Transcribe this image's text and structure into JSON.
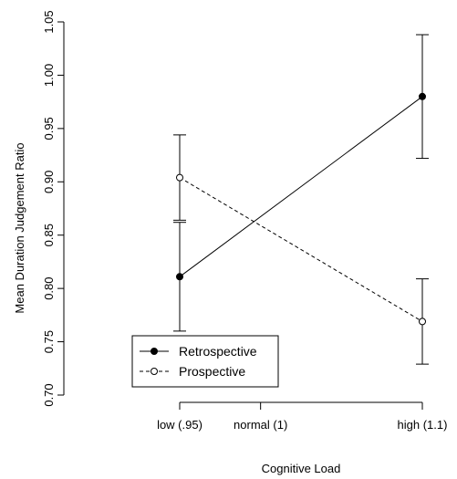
{
  "chart_data": {
    "type": "line",
    "title": "",
    "xlabel": "Cognitive Load",
    "ylabel": "Mean Duration Judgement Ratio",
    "x_ticks": [
      {
        "value": 0.95,
        "label": "low (.95)"
      },
      {
        "value": 1.0,
        "label": "normal (1)"
      },
      {
        "value": 1.1,
        "label": "high (1.1)"
      }
    ],
    "xlim": [
      0.95,
      1.1
    ],
    "ylim": [
      0.7,
      1.05
    ],
    "y_ticks": [
      "0.70",
      "0.75",
      "0.80",
      "0.85",
      "0.90",
      "0.95",
      "1.00",
      "1.05"
    ],
    "legend_position": "bottom-left",
    "grid": false,
    "series": [
      {
        "name": "Retrospective",
        "line_style": "solid",
        "marker": "filled-circle",
        "color": "#000000",
        "x": [
          0.95,
          1.1
        ],
        "values": [
          0.811,
          0.98
        ],
        "err_low": [
          0.76,
          0.922
        ],
        "err_high": [
          0.862,
          1.038
        ]
      },
      {
        "name": "Prospective",
        "line_style": "dashed",
        "marker": "open-circle",
        "color": "#000000",
        "x": [
          0.95,
          1.1
        ],
        "values": [
          0.904,
          0.769
        ],
        "err_low": [
          0.864,
          0.729
        ],
        "err_high": [
          0.944,
          0.809
        ]
      }
    ]
  }
}
